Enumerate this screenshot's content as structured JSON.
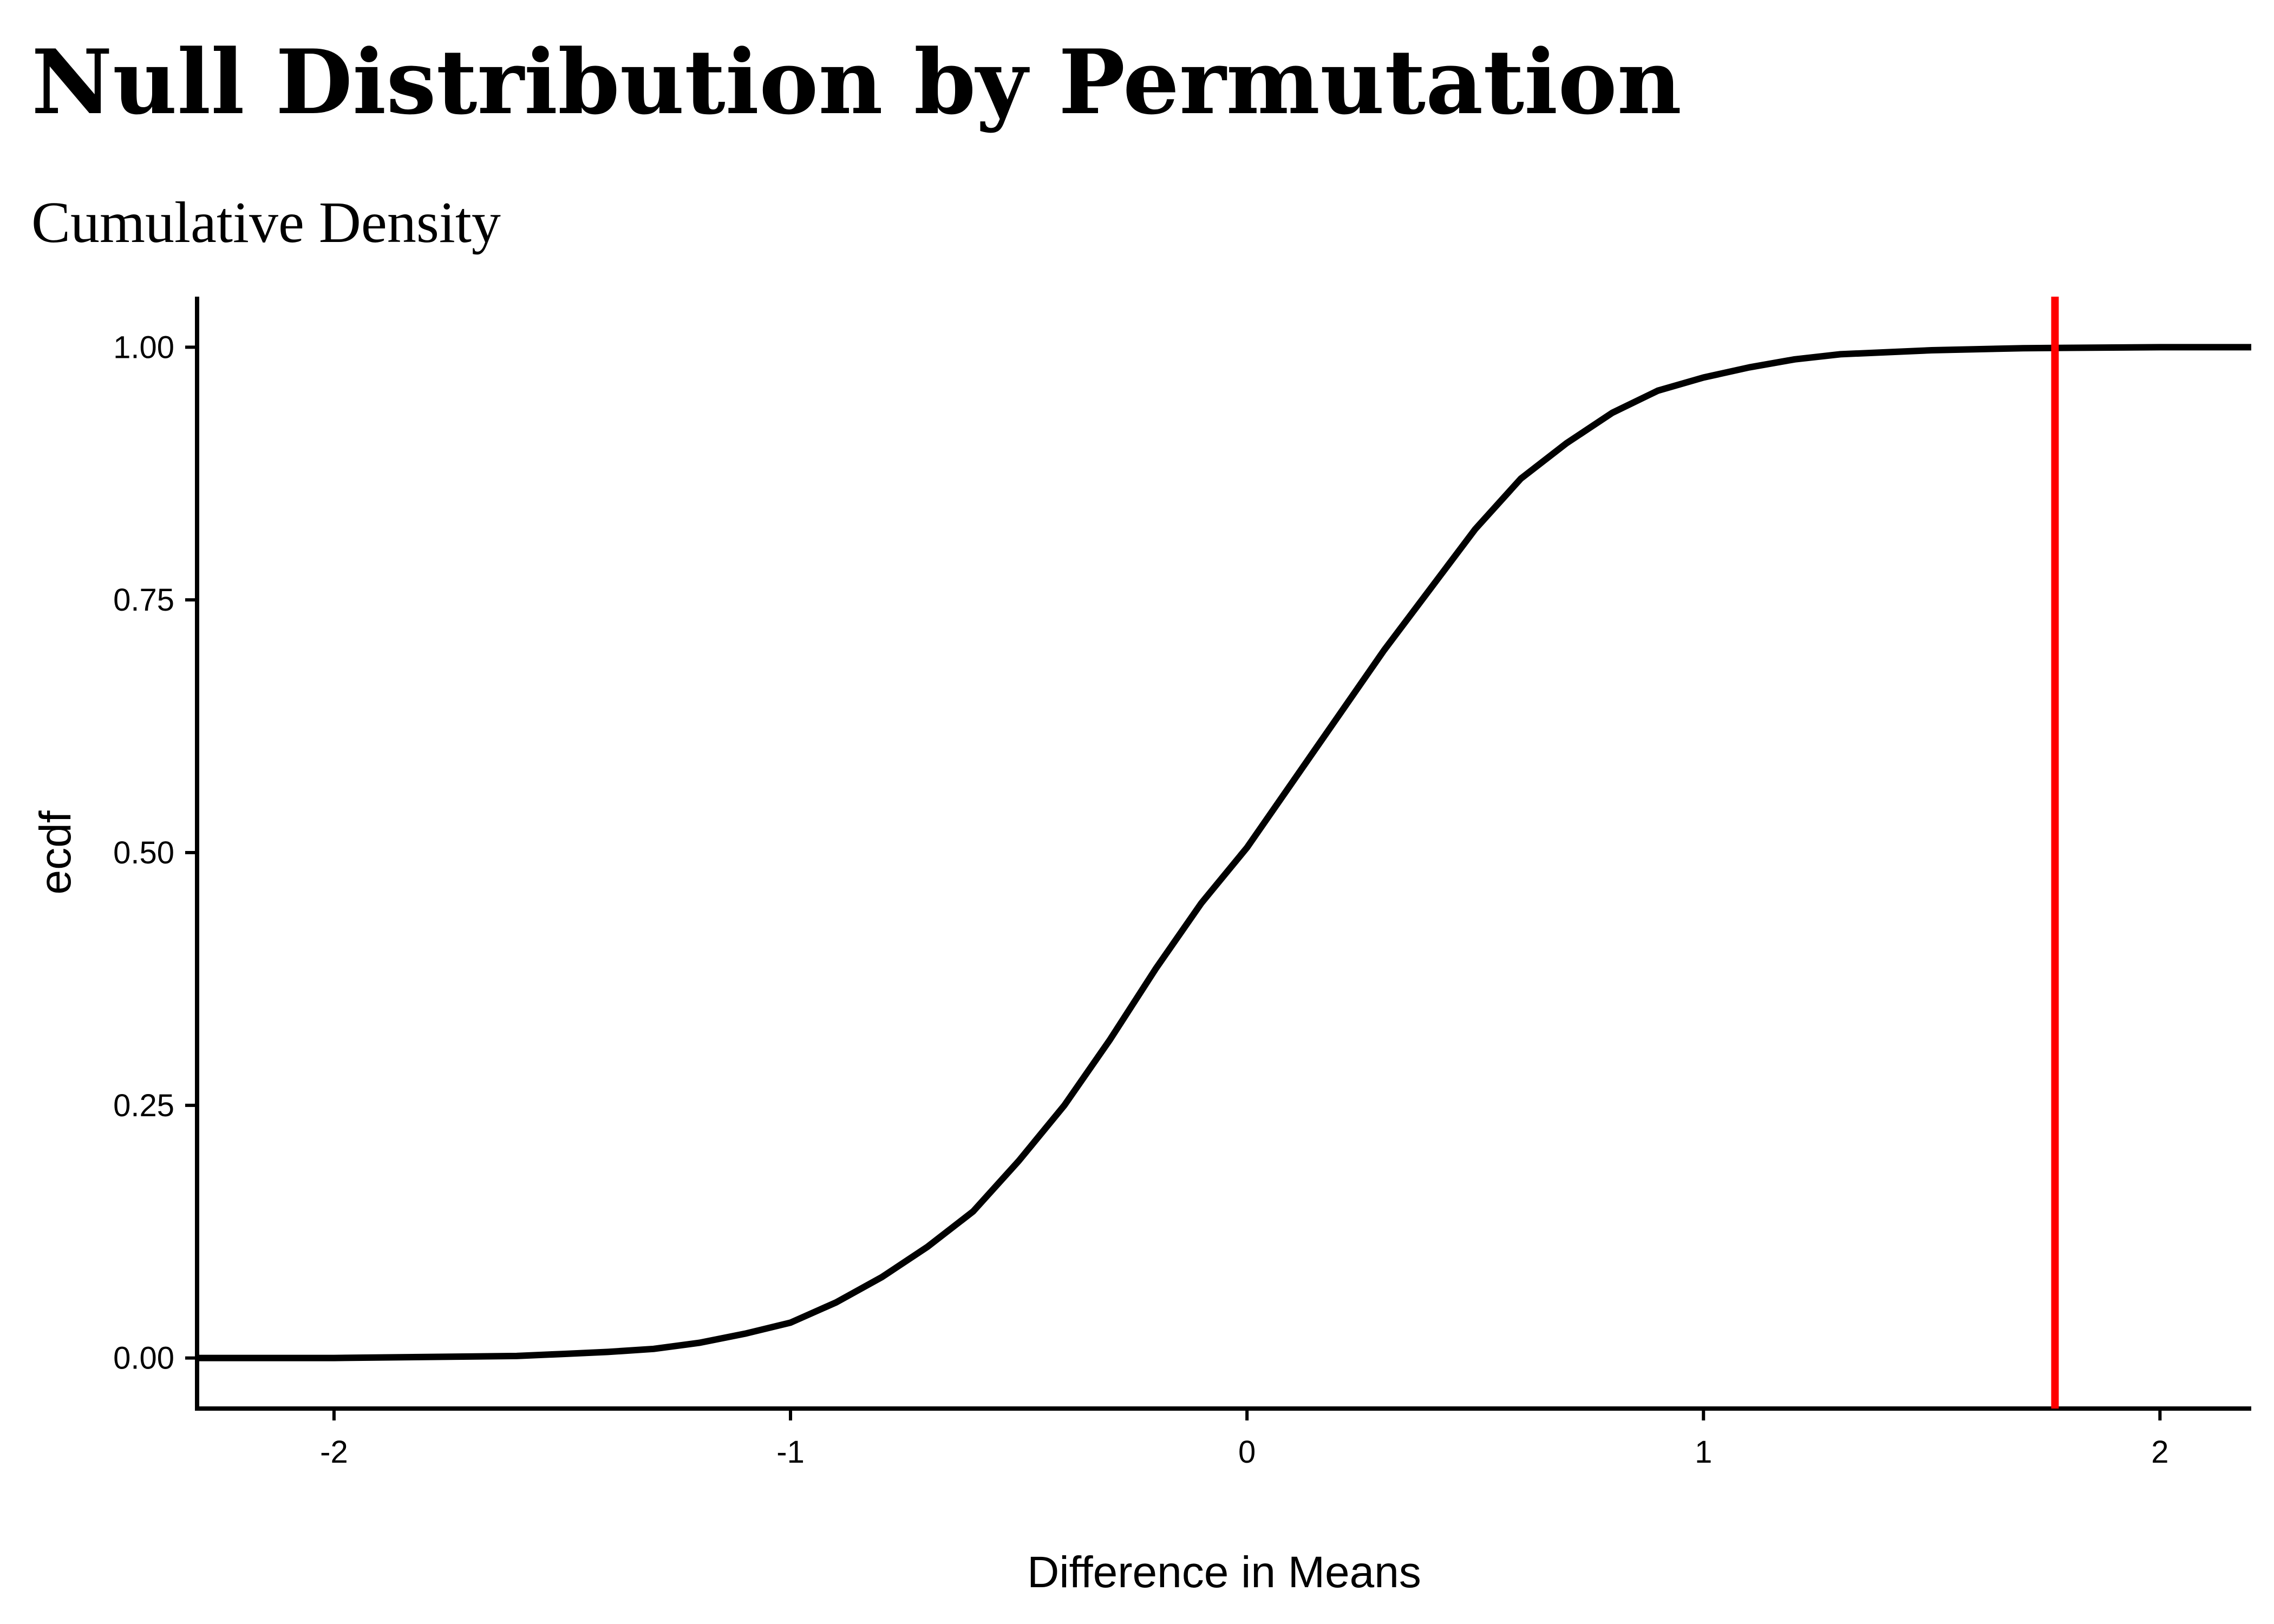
{
  "chart_data": {
    "type": "line",
    "title": "Null Distribution by Permutation",
    "subtitle": "Cumulative Density",
    "xlabel": "Difference in Means",
    "ylabel": "ecdf",
    "xlim": [
      -2.3,
      2.2
    ],
    "ylim": [
      -0.05,
      1.05
    ],
    "x_ticks": [
      -2,
      -1,
      0,
      1,
      2
    ],
    "x_tick_labels": [
      "-2",
      "-1",
      "0",
      "1",
      "2"
    ],
    "y_ticks": [
      0,
      0.25,
      0.5,
      0.75,
      1.0
    ],
    "y_tick_labels": [
      "0.00",
      "0.25",
      "0.50",
      "0.75",
      "1.00"
    ],
    "grid": false,
    "series": [
      {
        "color": "#000000",
        "points": [
          [
            -2.3,
            0.0
          ],
          [
            -2.0,
            0.0
          ],
          [
            -1.8,
            0.001
          ],
          [
            -1.6,
            0.002
          ],
          [
            -1.5,
            0.004
          ],
          [
            -1.4,
            0.006
          ],
          [
            -1.3,
            0.009
          ],
          [
            -1.2,
            0.015
          ],
          [
            -1.1,
            0.024
          ],
          [
            -1.0,
            0.035
          ],
          [
            -0.9,
            0.055
          ],
          [
            -0.8,
            0.08
          ],
          [
            -0.7,
            0.11
          ],
          [
            -0.6,
            0.145
          ],
          [
            -0.5,
            0.195
          ],
          [
            -0.4,
            0.25
          ],
          [
            -0.3,
            0.315
          ],
          [
            -0.2,
            0.385
          ],
          [
            -0.1,
            0.45
          ],
          [
            0.0,
            0.505
          ],
          [
            0.1,
            0.57
          ],
          [
            0.2,
            0.635
          ],
          [
            0.3,
            0.7
          ],
          [
            0.4,
            0.76
          ],
          [
            0.5,
            0.82
          ],
          [
            0.6,
            0.87
          ],
          [
            0.7,
            0.905
          ],
          [
            0.8,
            0.935
          ],
          [
            0.9,
            0.957
          ],
          [
            1.0,
            0.97
          ],
          [
            1.1,
            0.98
          ],
          [
            1.2,
            0.988
          ],
          [
            1.3,
            0.993
          ],
          [
            1.5,
            0.997
          ],
          [
            1.7,
            0.999
          ],
          [
            2.0,
            1.0
          ],
          [
            2.2,
            1.0
          ]
        ]
      }
    ],
    "reference_line": {
      "x": 1.77,
      "color": "#ff0000"
    }
  }
}
